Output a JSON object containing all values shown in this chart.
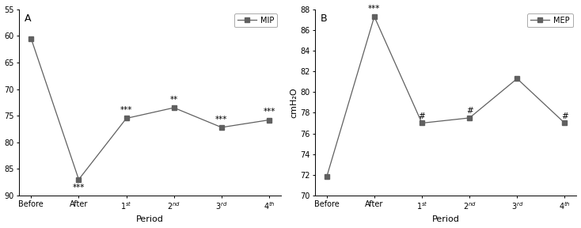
{
  "A": {
    "label": "MIP",
    "panel": "A",
    "x_labels_raw": [
      "Before",
      "After",
      "1$^{st}$",
      "2$^{nd}$",
      "3$^{rd}$",
      "4$^{th}$"
    ],
    "y_values": [
      60.5,
      87.0,
      75.5,
      73.5,
      77.2,
      75.8
    ],
    "ylim": [
      90,
      55
    ],
    "yticks": [
      55,
      60,
      65,
      70,
      75,
      80,
      85,
      90
    ],
    "ylabel": "",
    "annotations": [
      "",
      "***",
      "***",
      "**",
      "***",
      "***"
    ],
    "ann_va": [
      "",
      "top",
      "bottom",
      "bottom",
      "bottom",
      "bottom"
    ],
    "ann_dy": [
      0,
      0.8,
      -0.8,
      -0.8,
      -0.8,
      -0.8
    ]
  },
  "B": {
    "label": "MEP",
    "panel": "B",
    "x_labels_raw": [
      "Before",
      "After",
      "1$^{st}$",
      "2$^{nd}$",
      "3$^{rd}$",
      "4$^{th}$"
    ],
    "y_values": [
      71.8,
      87.3,
      77.0,
      77.5,
      81.3,
      77.0
    ],
    "ylim": [
      70,
      88
    ],
    "yticks": [
      70,
      72,
      74,
      76,
      78,
      80,
      82,
      84,
      86,
      88
    ],
    "ylabel": "cmH₂O",
    "annotations": [
      "",
      "***",
      "#",
      "#",
      "",
      "#"
    ],
    "ann_va": [
      "",
      "bottom",
      "bottom",
      "bottom",
      "",
      "bottom"
    ],
    "ann_dy": [
      0,
      0.4,
      0.3,
      0.3,
      0,
      0.3
    ]
  },
  "line_color": "#606060",
  "marker_color": "#606060",
  "marker": "s",
  "marker_size": 4,
  "linewidth": 0.9,
  "xlabel": "Period",
  "ann_fontsize": 7.5,
  "tick_fontsize": 7,
  "label_fontsize": 8,
  "panel_fontsize": 9
}
